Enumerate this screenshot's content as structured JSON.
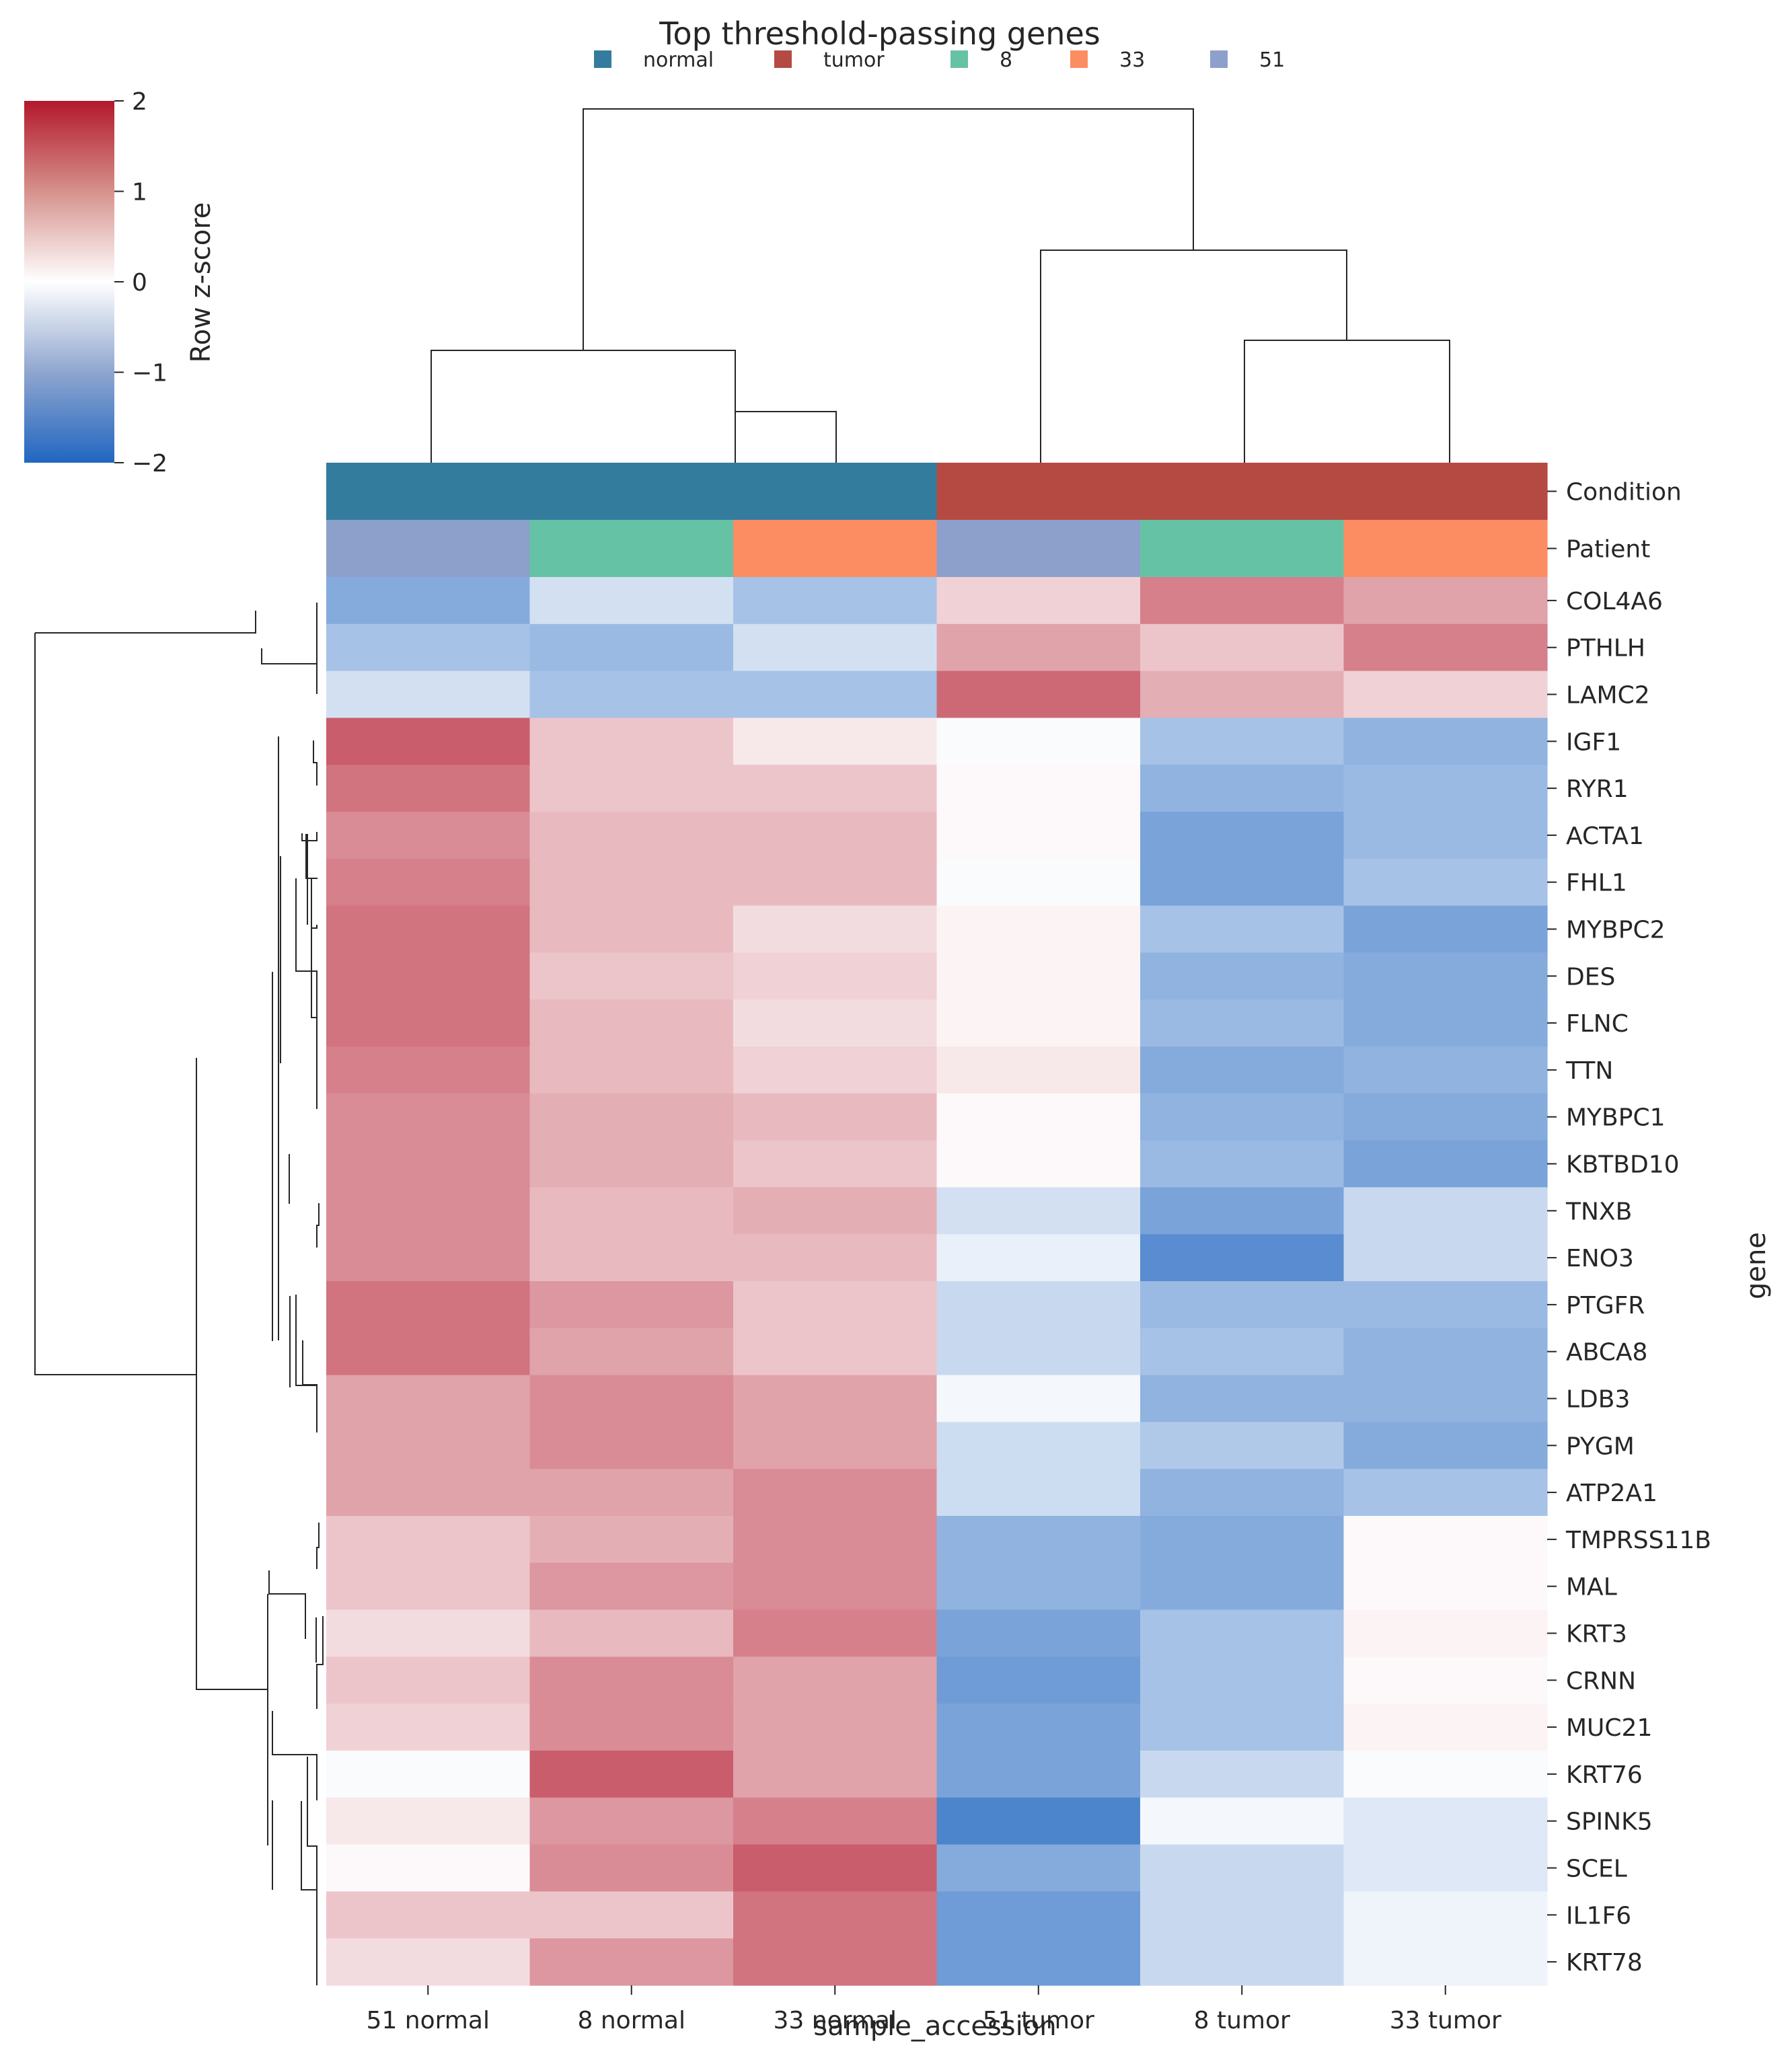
{
  "chart_data": {
    "type": "heatmap",
    "title": "Top threshold-passing genes",
    "xlabel": "sample_accession",
    "ylabel": "gene",
    "colorbar": {
      "label": "Row z-score",
      "range": [
        -2,
        2
      ],
      "ticks": [
        "2",
        "1",
        "0",
        "−1",
        "−2"
      ],
      "low_color": "#2166c0",
      "mid_color": "#ffffff",
      "high_color": "#b2182b"
    },
    "legend": {
      "placement": "top-center",
      "entries": [
        {
          "label": "normal",
          "color": "#337c9e"
        },
        {
          "label": "tumor",
          "color": "#b54a43"
        },
        {
          "label": "8",
          "color": "#66c2a5"
        },
        {
          "label": "33",
          "color": "#fc8d62"
        },
        {
          "label": "51",
          "color": "#8da0cb"
        }
      ]
    },
    "annotation_rows": [
      {
        "label": "Condition",
        "colors": [
          "#337c9e",
          "#337c9e",
          "#337c9e",
          "#b54a43",
          "#b54a43",
          "#b54a43"
        ]
      },
      {
        "label": "Patient",
        "colors": [
          "#8da0cb",
          "#66c2a5",
          "#fc8d62",
          "#8da0cb",
          "#66c2a5",
          "#fc8d62"
        ]
      }
    ],
    "columns": [
      "51 normal",
      "8 normal",
      "33 normal",
      "51 tumor",
      "8 tumor",
      "33 tumor"
    ],
    "rows": [
      "COL4A6",
      "PTHLH",
      "LAMC2",
      "IGF1",
      "RYR1",
      "ACTA1",
      "FHL1",
      "MYBPC2",
      "DES",
      "FLNC",
      "TTN",
      "MYBPC1",
      "KBTBD10",
      "TNXB",
      "ENO3",
      "PTGFR",
      "ABCA8",
      "LDB3",
      "PYGM",
      "ATP2A1",
      "TMPRSS11B",
      "MAL",
      "KRT3",
      "CRNN",
      "MUC21",
      "KRT76",
      "SPINK5",
      "SCEL",
      "IL1F6",
      "KRT78"
    ],
    "values": [
      [
        -1.1,
        -0.4,
        -0.8,
        0.4,
        1.1,
        0.8
      ],
      [
        -0.8,
        -0.9,
        -0.4,
        0.8,
        0.5,
        1.1
      ],
      [
        -0.4,
        -0.8,
        -0.8,
        1.3,
        0.7,
        0.4
      ],
      [
        1.4,
        0.5,
        0.2,
        -0.05,
        -0.8,
        -1.0
      ],
      [
        1.2,
        0.5,
        0.5,
        0.05,
        -1.0,
        -0.9
      ],
      [
        1.0,
        0.6,
        0.6,
        0.05,
        -1.2,
        -0.9
      ],
      [
        1.1,
        0.6,
        0.6,
        -0.05,
        -1.2,
        -0.8
      ],
      [
        1.2,
        0.6,
        0.3,
        0.1,
        -0.8,
        -1.2
      ],
      [
        1.2,
        0.5,
        0.4,
        0.1,
        -1.0,
        -1.1
      ],
      [
        1.2,
        0.6,
        0.3,
        0.1,
        -0.9,
        -1.1
      ],
      [
        1.1,
        0.6,
        0.4,
        0.2,
        -1.1,
        -1.0
      ],
      [
        1.0,
        0.7,
        0.6,
        0.05,
        -1.0,
        -1.1
      ],
      [
        1.0,
        0.7,
        0.5,
        0.05,
        -0.9,
        -1.2
      ],
      [
        1.0,
        0.6,
        0.7,
        -0.4,
        -1.2,
        -0.5
      ],
      [
        1.0,
        0.6,
        0.6,
        -0.2,
        -1.5,
        -0.5
      ],
      [
        1.2,
        0.9,
        0.5,
        -0.5,
        -0.9,
        -0.9
      ],
      [
        1.2,
        0.8,
        0.5,
        -0.5,
        -0.8,
        -1.0
      ],
      [
        0.8,
        1.0,
        0.8,
        -0.1,
        -1.0,
        -1.0
      ],
      [
        0.8,
        1.0,
        0.8,
        -0.45,
        -0.7,
        -1.1
      ],
      [
        0.8,
        0.8,
        1.0,
        -0.45,
        -1.0,
        -0.8
      ],
      [
        0.5,
        0.7,
        1.0,
        -1.0,
        -1.1,
        0.05
      ],
      [
        0.5,
        0.9,
        1.0,
        -1.0,
        -1.1,
        0.05
      ],
      [
        0.3,
        0.6,
        1.1,
        -1.2,
        -0.8,
        0.1
      ],
      [
        0.5,
        1.0,
        0.8,
        -1.3,
        -0.8,
        0.05
      ],
      [
        0.4,
        1.0,
        0.8,
        -1.2,
        -0.8,
        0.1
      ],
      [
        -0.05,
        1.4,
        0.8,
        -1.2,
        -0.5,
        -0.05
      ],
      [
        0.2,
        0.9,
        1.1,
        -1.6,
        -0.1,
        -0.3
      ],
      [
        0.05,
        1.0,
        1.4,
        -1.1,
        -0.5,
        -0.3
      ],
      [
        0.5,
        0.5,
        1.2,
        -1.3,
        -0.5,
        -0.15
      ],
      [
        0.3,
        0.9,
        1.2,
        -1.3,
        -0.5,
        -0.15
      ]
    ]
  }
}
